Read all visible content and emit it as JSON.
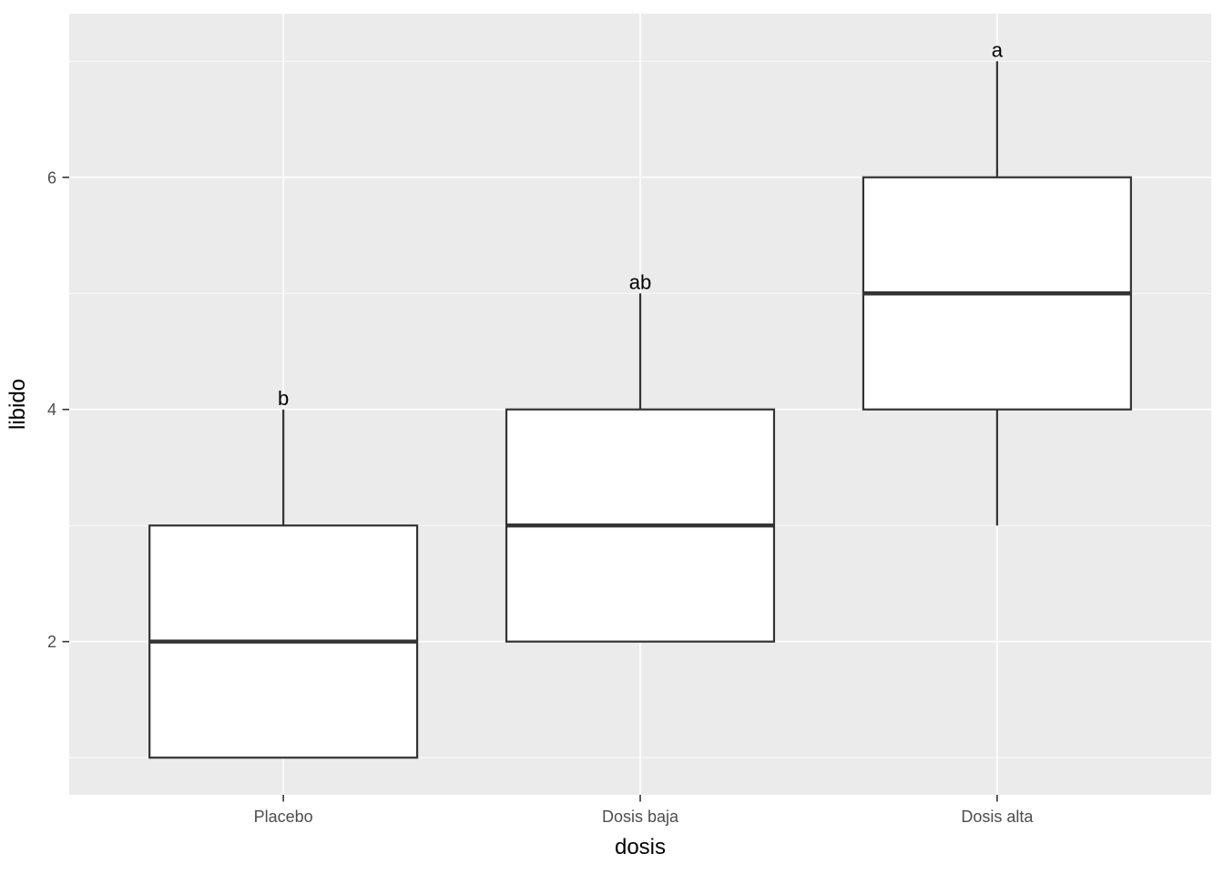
{
  "figure": {
    "background": "#FFFFFF"
  },
  "chart_data": {
    "type": "boxplot",
    "title": "",
    "xlabel": "dosis",
    "ylabel": "libido",
    "categories": [
      "Placebo",
      "Dosis baja",
      "Dosis alta"
    ],
    "x_axis": {
      "positions": [
        1,
        2,
        3
      ],
      "range": [
        0.4,
        3.6
      ]
    },
    "y_axis": {
      "ticks": [
        2,
        4,
        6
      ],
      "tick_labels": [
        "2",
        "4",
        "6"
      ],
      "minor_ticks": [
        1,
        3,
        5,
        7
      ],
      "range": [
        0.68,
        7.41
      ]
    },
    "series": [
      {
        "category": "Placebo",
        "min": 1,
        "q1": 1,
        "median": 2,
        "q3": 3,
        "max": 4,
        "sig_label": "b",
        "sig_label_y": 4.1
      },
      {
        "category": "Dosis baja",
        "min": 2,
        "q1": 2,
        "median": 3,
        "q3": 4,
        "max": 5,
        "sig_label": "ab",
        "sig_label_y": 5.1
      },
      {
        "category": "Dosis alta",
        "min": 3,
        "q1": 4,
        "median": 5,
        "q3": 6,
        "max": 7,
        "sig_label": "a",
        "sig_label_y": 7.1
      }
    ],
    "box_width_units": 0.75,
    "grid": "on",
    "legend": "none",
    "style": {
      "panel_bg": "#EBEBEB",
      "grid_color": "#FFFFFF",
      "box_fill": "#FFFFFF",
      "box_border": "#333333",
      "whisker_color": "#333333",
      "median_color": "#333333",
      "tick_mark_color": "#333333",
      "tick_label_color": "#4D4D4D",
      "axis_title_color": "#000000",
      "sig_label_color": "#000000"
    }
  }
}
